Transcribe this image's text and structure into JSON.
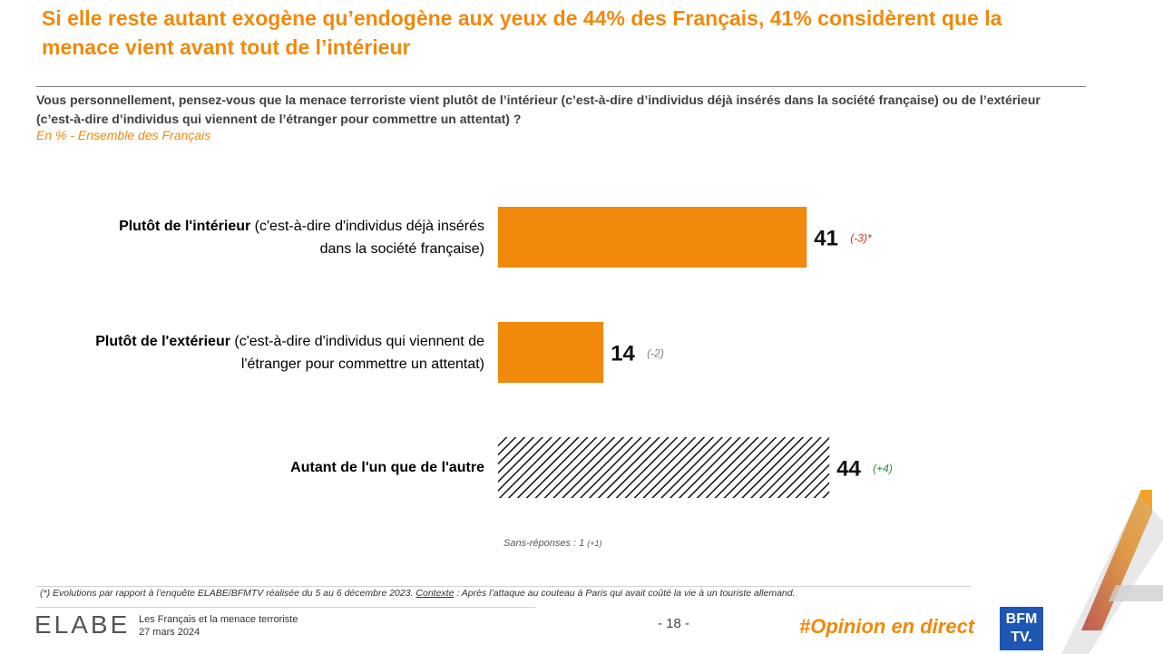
{
  "header": {
    "title": "Si elle reste autant exogène qu’endogène aux yeux de 44% des Français, 41% considèrent que la menace vient avant tout de l’intérieur",
    "question": "Vous personnellement, pensez-vous que la menace terroriste vient plutôt de l’intérieur (c’est-à-dire d’individus déjà insérés dans la société française) ou de l’extérieur (c’est-à-dire d’individus qui viennent de l’étranger pour commettre un attentat) ?",
    "base": "En % - Ensemble des Français"
  },
  "chart_data": {
    "type": "bar",
    "orientation": "horizontal",
    "categories": [
      {
        "bold": "Plutôt de l'intérieur",
        "rest": " (c'est-à-dire d'individus déjà insérés dans la société française)"
      },
      {
        "bold": "Plutôt de l'extérieur",
        "rest": " (c'est-à-dire d'individus qui viennent de l'étranger pour commettre un attentat)"
      },
      {
        "bold": "Autant de l'un que de l'autre",
        "rest": ""
      }
    ],
    "values": [
      41,
      14,
      44
    ],
    "value_labels": [
      "41",
      "14",
      "44"
    ],
    "evolutions": [
      "(-3)*",
      "(-2)",
      "(+4)"
    ],
    "evolution_colors": [
      "#c0392b",
      "#7f7f7f",
      "#2e8b3e"
    ],
    "bar_styles": [
      "solid",
      "solid",
      "hatched"
    ],
    "bar_color": "#f0890c",
    "xlim": [
      0,
      100
    ]
  },
  "no_answer": {
    "text": "Sans-réponses : 1",
    "evolution": "(+1)"
  },
  "footer": {
    "footnote_prefix": "(*) Evolutions par rapport à l’enquête ELABE/BFMTV réalisée du 5 au 6 décembre 2023. ",
    "footnote_context_label": "Contexte",
    "footnote_suffix": " : Après l’attaque au couteau à Paris qui avait coûté la vie à un touriste allemand.",
    "logo": "ELABE",
    "study_title": "Les Français et la menace terroriste",
    "date": "27 mars 2024",
    "page_number": "- 18 -",
    "hashtag": "#Opinion en direct",
    "bfm_line1": "BFM",
    "bfm_line2": "TV."
  },
  "colors": {
    "accent": "#f0890c",
    "bfm_blue": "#1e56b3"
  }
}
